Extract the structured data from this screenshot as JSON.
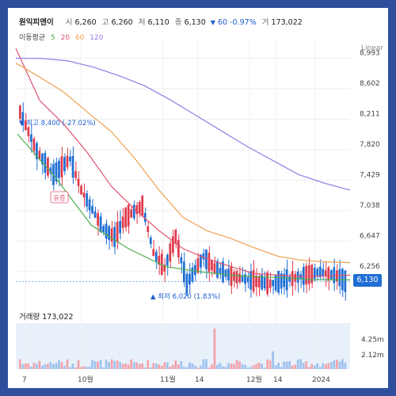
{
  "header": {
    "name": "원익피앤이",
    "open_label": "시",
    "open": "6,260",
    "high_label": "고",
    "high": "6,260",
    "low_label": "저",
    "low": "6,110",
    "close_label": "종",
    "close": "6,130",
    "change": "60",
    "change_pct": "-0.97%",
    "volume_label": "거",
    "volume": "173,022"
  },
  "ma_legend": {
    "title": "이동평균",
    "p5": "5",
    "p20": "20",
    "p60": "60",
    "p120": "120"
  },
  "volume_panel": {
    "title": "거래량",
    "value": "173,022"
  },
  "colors": {
    "up": "#e0394a",
    "down": "#1e6ed3",
    "ma5": "#4caf50",
    "ma20": "#e05470",
    "ma60": "#f0a050",
    "ma120": "#9b7be6",
    "grid": "#eeeeee",
    "volume_bg": "#e8f0fa"
  },
  "chart": {
    "scale_mode": "Linear",
    "last_price_tag": "6,130"
  },
  "chart_data": {
    "type": "candlestick",
    "title": "",
    "y_ticks": [
      "8,993",
      "8,602",
      "8,211",
      "7,820",
      "7,429",
      "7,038",
      "6,647",
      "6,256"
    ],
    "ylim": [
      5980,
      9130
    ],
    "x_ticks": [
      "7",
      "10월",
      "11월",
      "14",
      "12월",
      "14",
      "2024"
    ],
    "volume_ticks": [
      "4.25m",
      "2.12m"
    ],
    "volume_max": 6.4,
    "annotations": {
      "high_label": "최고 8,400 (-27.02%)",
      "low_label": "최저 6,020 (1.83%)",
      "marker": "유증"
    },
    "ma_series": [
      {
        "name": "5",
        "values": [
          8020,
          7480,
          6850,
          6550,
          6320,
          6250,
          6200,
          6180,
          6150,
          6150
        ]
      },
      {
        "name": "20",
        "values": [
          9120,
          8450,
          8150,
          7780,
          7350,
          7050,
          6780,
          6550,
          6420,
          6320,
          6230,
          6210,
          6190,
          6200,
          6210
        ]
      },
      {
        "name": "60",
        "values": [
          8930,
          8750,
          8560,
          8300,
          8050,
          7700,
          7300,
          6950,
          6780,
          6680,
          6560,
          6450,
          6400,
          6380,
          6370
        ]
      },
      {
        "name": "120",
        "values": [
          8993,
          8990,
          8960,
          8880,
          8770,
          8640,
          8460,
          8260,
          8060,
          7860,
          7680,
          7500,
          7390,
          7300
        ]
      }
    ]
  }
}
